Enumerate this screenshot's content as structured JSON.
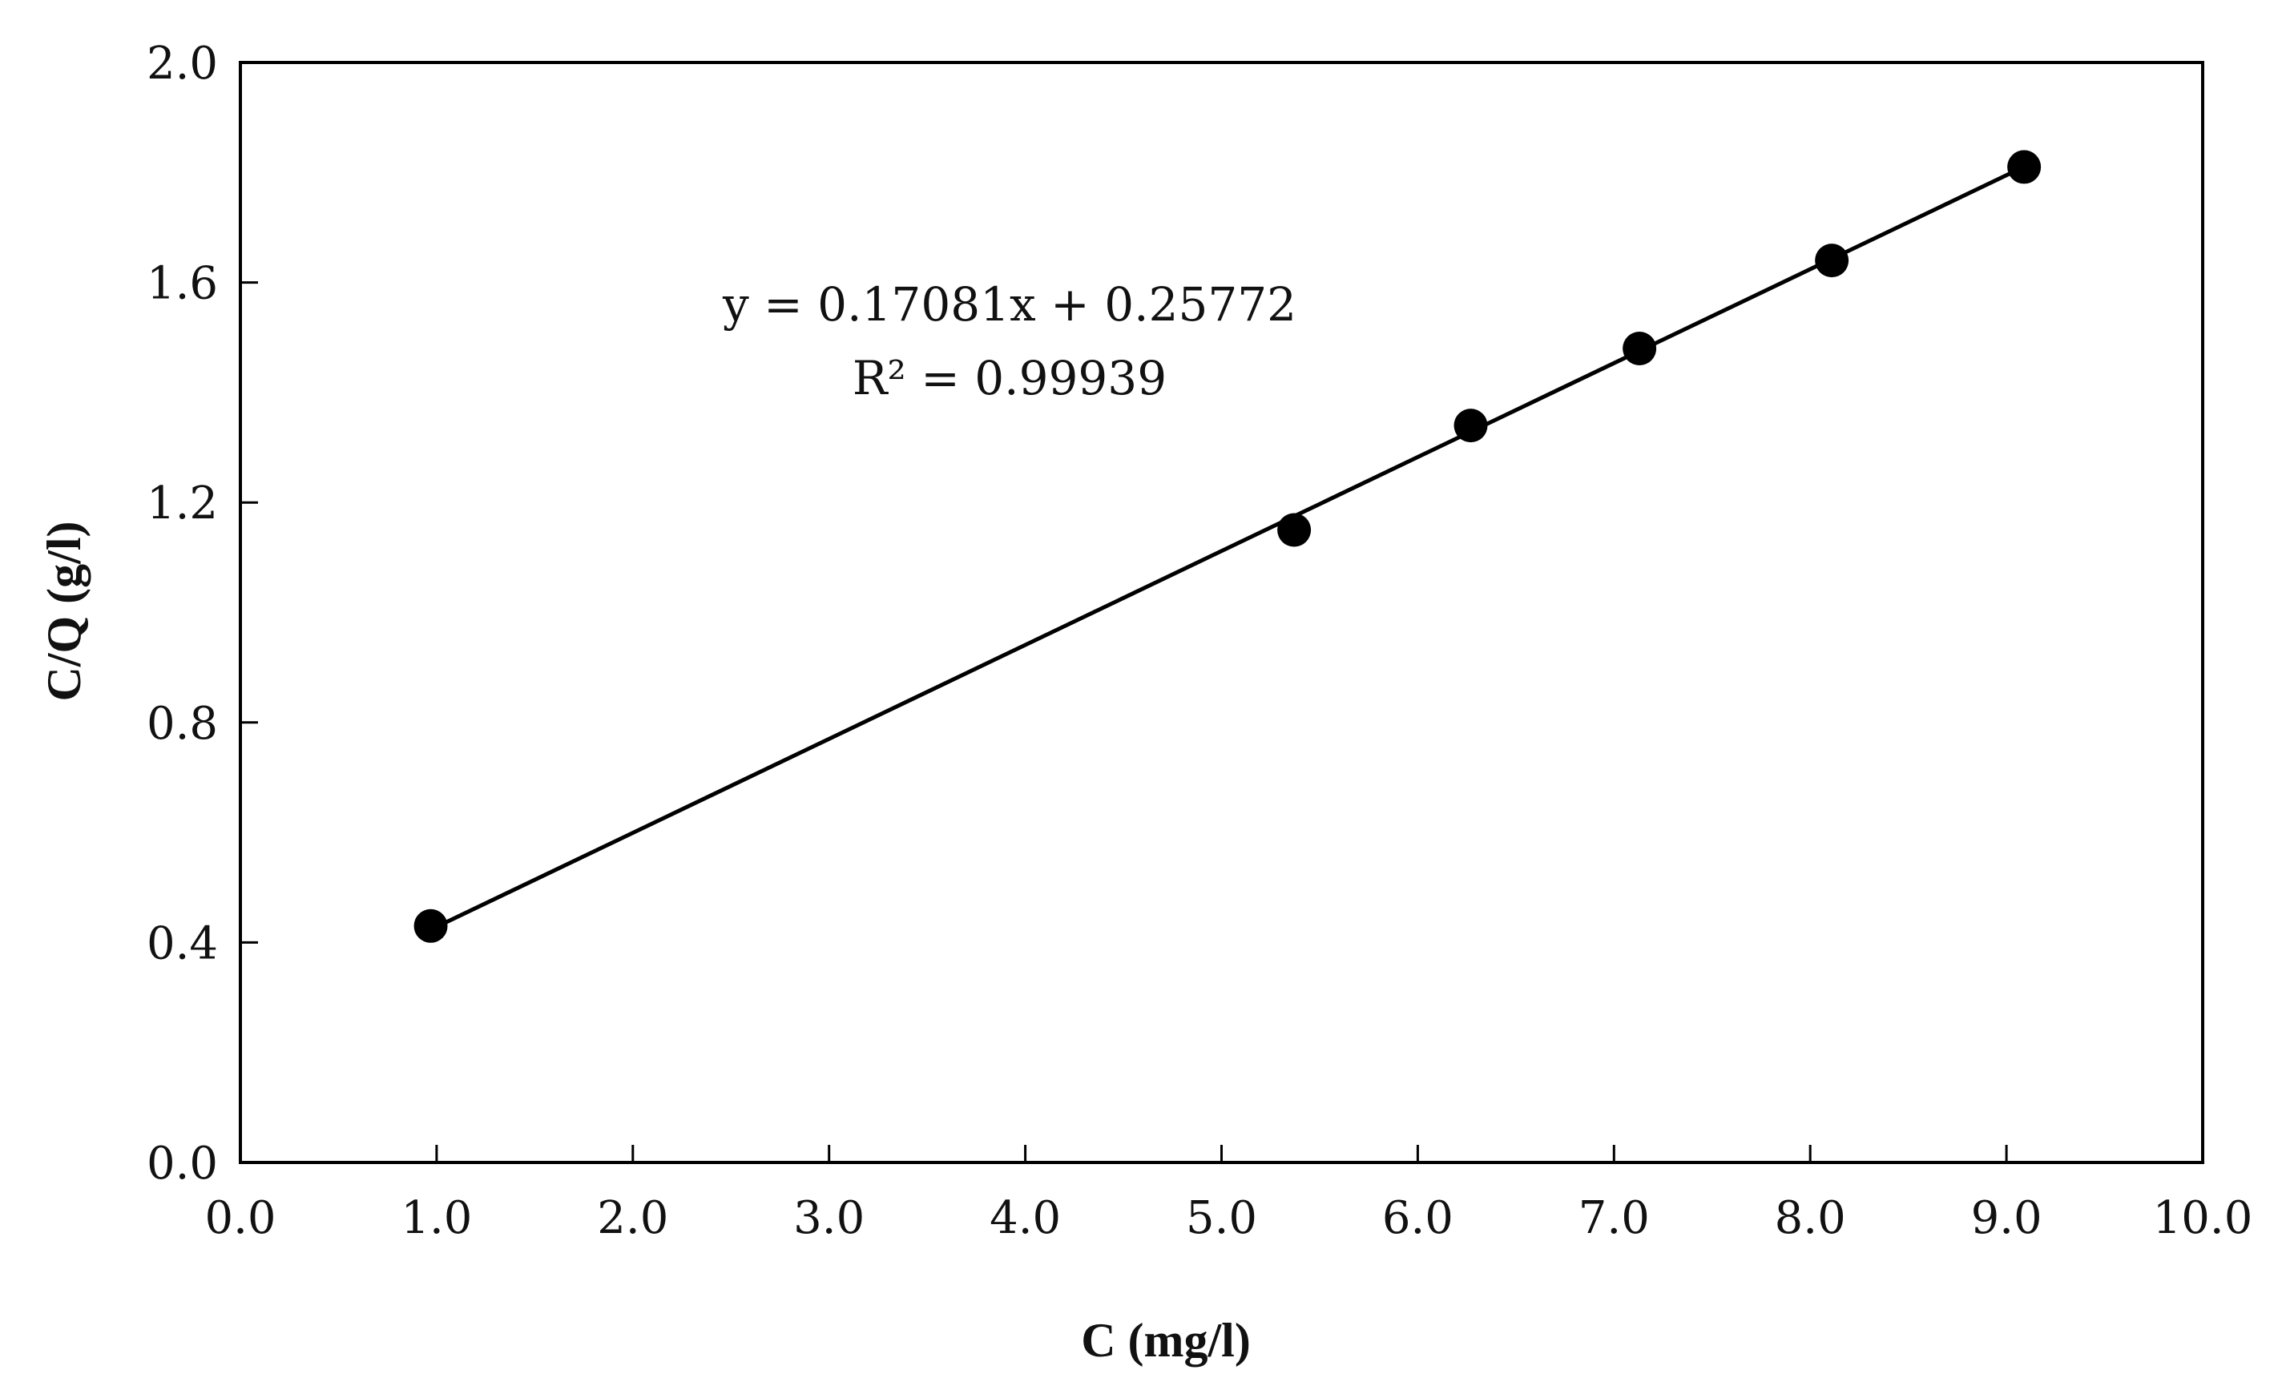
{
  "chart_data": {
    "type": "scatter",
    "xlabel": "C (mg/l)",
    "ylabel": "C/Q (g/l)",
    "xlim": [
      0.0,
      10.0
    ],
    "ylim": [
      0.0,
      2.0
    ],
    "x_ticks": [
      "0.0",
      "1.0",
      "2.0",
      "3.0",
      "4.0",
      "5.0",
      "6.0",
      "7.0",
      "8.0",
      "9.0",
      "10.0"
    ],
    "y_ticks": [
      "0.0",
      "0.4",
      "0.8",
      "1.2",
      "1.6",
      "2.0"
    ],
    "grid": false,
    "series": [
      {
        "x": [
          0.97,
          5.37,
          6.27,
          7.13,
          8.11,
          9.09
        ],
        "y": [
          0.43,
          1.15,
          1.34,
          1.48,
          1.64,
          1.81
        ],
        "color": "#000000"
      }
    ],
    "trendline": {
      "slope": 0.17081,
      "intercept": 0.25772,
      "x_range": [
        0.97,
        9.09
      ],
      "equation": "y = 0.17081x + 0.25772",
      "r_squared": "R² = 0.99939"
    }
  }
}
